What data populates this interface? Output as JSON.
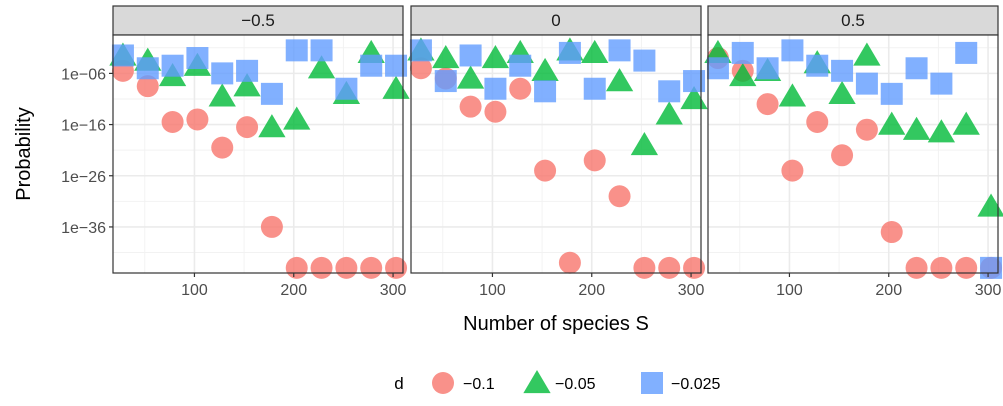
{
  "chart_data": {
    "type": "scatter",
    "facet_variable": "",
    "panels": [
      {
        "label": "−0.5",
        "series": [
          {
            "name": "−0.1",
            "x": [
              28,
              53,
              78,
              103,
              128,
              153,
              178,
              203,
              228,
              253,
              278,
              303
            ],
            "y": [
              -5.5,
              -8.5,
              -15.5,
              -15,
              -20.5,
              -16.5,
              -36,
              -44,
              -44,
              -44,
              -44,
              -44
            ]
          },
          {
            "name": "−0.05",
            "x": [
              28,
              53,
              78,
              103,
              128,
              153,
              178,
              203,
              228,
              253,
              278,
              303
            ],
            "y": [
              -2.5,
              -3.5,
              -6.5,
              -4.5,
              -10.5,
              -8.5,
              -16.5,
              -15,
              -5,
              -10,
              -2,
              -9
            ]
          },
          {
            "name": "−0.025",
            "x": [
              28,
              53,
              78,
              103,
              128,
              153,
              178,
              203,
              228,
              253,
              278,
              303
            ],
            "y": [
              -2.5,
              -5,
              -4.5,
              -3,
              -6,
              -5.5,
              -10,
              -1.5,
              -1.5,
              -9,
              -4.5,
              -4.5
            ]
          }
        ]
      },
      {
        "label": "0",
        "series": [
          {
            "name": "−0.1",
            "x": [
              28,
              53,
              78,
              103,
              128,
              153,
              178,
              203,
              228,
              253,
              278,
              303
            ],
            "y": [
              -5,
              -7,
              -12.5,
              -13.5,
              -9,
              -25,
              -43,
              -23,
              -30,
              -44,
              -44,
              -44
            ]
          },
          {
            "name": "−0.05",
            "x": [
              28,
              53,
              78,
              103,
              128,
              153,
              178,
              203,
              228,
              253,
              278,
              303
            ],
            "y": [
              -1.5,
              -3,
              -7,
              -3,
              -2,
              -5.5,
              -1.5,
              -2,
              -7.5,
              -20,
              -14,
              -11
            ]
          },
          {
            "name": "−0.025",
            "x": [
              28,
              53,
              78,
              103,
              128,
              153,
              178,
              203,
              228,
              253,
              278,
              303
            ],
            "y": [
              -1.5,
              -7.5,
              -2.5,
              -9,
              -4.5,
              -9.5,
              -2,
              -9,
              -1.5,
              -3.5,
              -9.5,
              -7.5
            ]
          }
        ]
      },
      {
        "label": "0.5",
        "series": [
          {
            "name": "−0.1",
            "x": [
              28,
              53,
              78,
              103,
              128,
              153,
              178,
              203,
              228,
              253,
              278,
              303
            ],
            "y": [
              -3,
              -5.5,
              -12,
              -25,
              -15.5,
              -22,
              -17,
              -37,
              -44,
              -44,
              -44,
              -44
            ]
          },
          {
            "name": "−0.05",
            "x": [
              28,
              53,
              78,
              103,
              128,
              153,
              178,
              203,
              228,
              253,
              278,
              303
            ],
            "y": [
              -2,
              -6.5,
              -5.5,
              -10.5,
              -4,
              -10,
              -2.5,
              -16,
              -17,
              -17.5,
              -16,
              -32
            ]
          },
          {
            "name": "−0.025",
            "x": [
              28,
              53,
              78,
              103,
              128,
              153,
              178,
              203,
              228,
              253,
              278,
              303
            ],
            "y": [
              -5,
              -2,
              -5,
              -1.5,
              -4.5,
              -5.5,
              -8,
              -10,
              -5,
              -8,
              -2,
              -44
            ]
          }
        ]
      }
    ],
    "xlabel": "Number of species S",
    "ylabel": "Probability",
    "x_ticks": [
      100,
      200,
      300
    ],
    "x_tick_labels": [
      "100",
      "200",
      "300"
    ],
    "xlim": [
      18,
      310
    ],
    "y_scale": "log10",
    "y_ticks": [
      -6,
      -16,
      -26,
      -36
    ],
    "y_tick_labels": [
      "1e−06",
      "1e−16",
      "1e−26",
      "1e−36"
    ],
    "ylim": [
      -45,
      1.5
    ],
    "grid": true,
    "legend": {
      "title": "d",
      "position": "bottom",
      "entries": [
        {
          "label": "−0.1",
          "shape": "circle",
          "color": "#F8766D"
        },
        {
          "label": "−0.05",
          "shape": "triangle",
          "color": "#00BA38"
        },
        {
          "label": "−0.025",
          "shape": "square",
          "color": "#619CFF"
        }
      ]
    },
    "colors": {
      "−0.1": "#F8766D",
      "−0.05": "#00BA38",
      "−0.025": "#619CFF",
      "strip_fill": "#D9D9D9",
      "grid": "#EBEBEB",
      "axis_text": "#4D4D4D"
    }
  }
}
